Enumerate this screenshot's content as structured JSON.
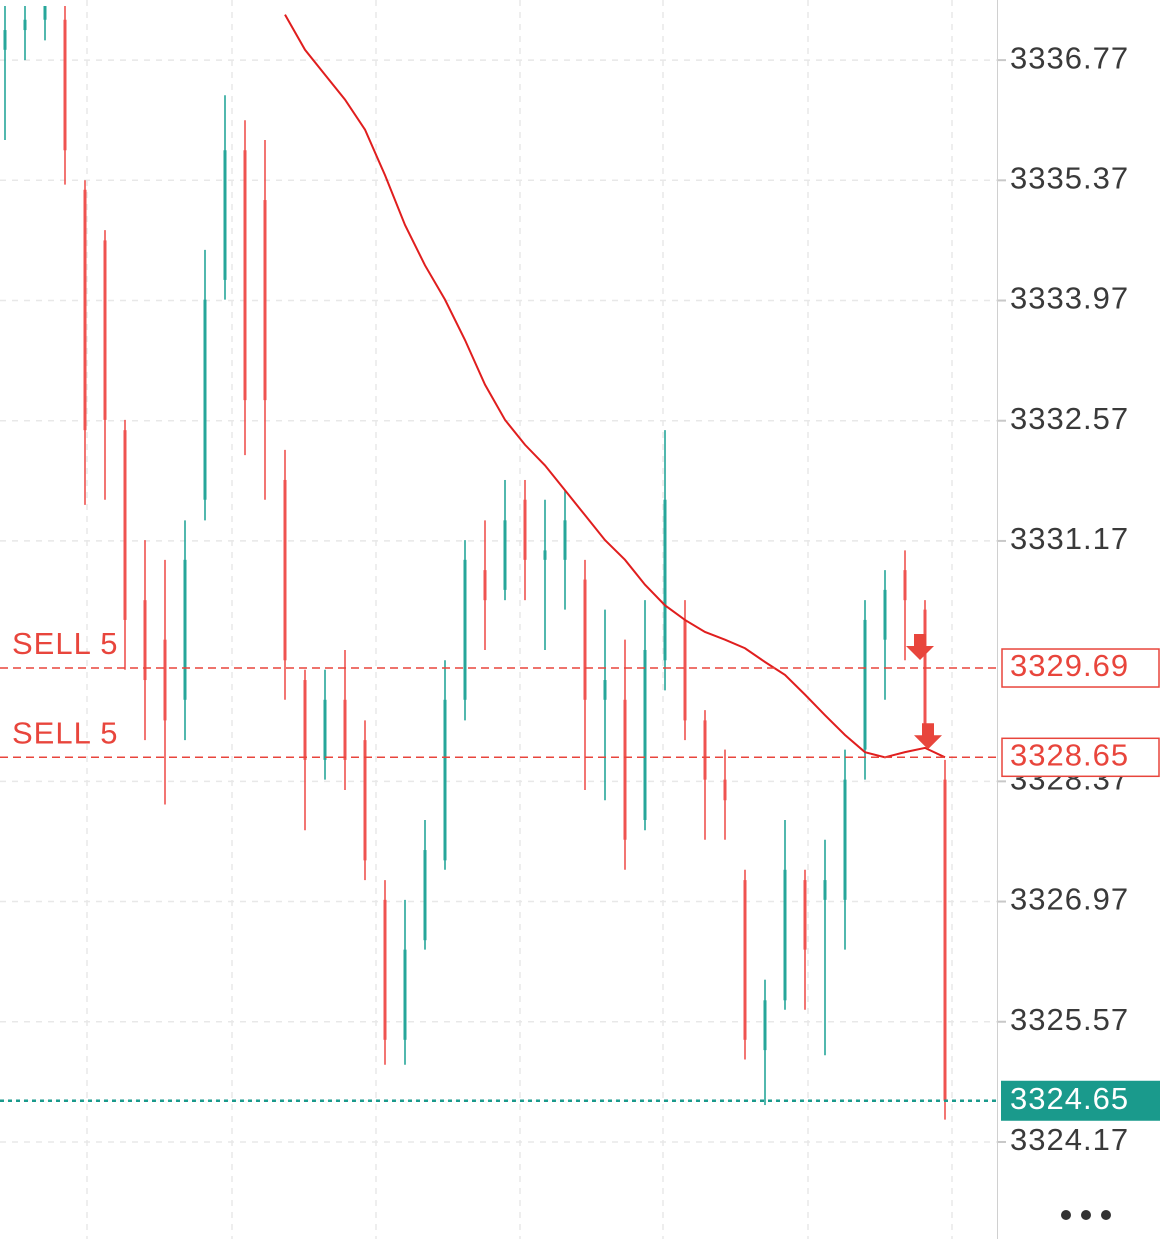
{
  "chart_data": {
    "type": "ohlc",
    "up_color": "#26a69a",
    "down_color": "#ef5350",
    "open": [
      3336.89,
      3337.12,
      3337.24,
      3337.24,
      3335.26,
      3334.67,
      3332.46,
      3330.48,
      3330.02,
      3329.32,
      3331.65,
      3334.21,
      3335.72,
      3335.14,
      3331.88,
      3329.55,
      3328.62,
      3329.32,
      3328.85,
      3326.99,
      3325.36,
      3326.52,
      3327.45,
      3329.32,
      3330.83,
      3330.6,
      3331.65,
      3330.95,
      3330.95,
      3330.72,
      3329.32,
      3329.32,
      3327.92,
      3329.78,
      3330.25,
      3329.08,
      3328.39,
      3327.22,
      3325.24,
      3325.82,
      3327.22,
      3326.99,
      3326.99,
      3328.74,
      3330.02,
      3330.83,
      3330.37,
      3328.39
    ],
    "high": [
      3337.4,
      3337.4,
      3337.4,
      3337.4,
      3335.37,
      3334.79,
      3332.58,
      3331.18,
      3330.95,
      3331.41,
      3334.56,
      3336.36,
      3336.07,
      3335.84,
      3332.23,
      3329.67,
      3329.67,
      3329.9,
      3329.08,
      3327.22,
      3326.99,
      3327.92,
      3329.78,
      3331.18,
      3331.41,
      3331.88,
      3331.88,
      3331.65,
      3331.76,
      3330.95,
      3330.37,
      3330.02,
      3330.48,
      3332.46,
      3330.48,
      3329.2,
      3328.74,
      3327.34,
      3326.06,
      3327.92,
      3327.34,
      3327.69,
      3328.74,
      3330.48,
      3330.83,
      3331.06,
      3330.48,
      3328.62
    ],
    "low": [
      3335.84,
      3336.77,
      3337.0,
      3335.32,
      3331.59,
      3331.65,
      3329.67,
      3328.85,
      3328.1,
      3328.85,
      3331.41,
      3333.98,
      3332.17,
      3331.65,
      3329.32,
      3327.8,
      3328.39,
      3328.27,
      3327.22,
      3325.07,
      3325.07,
      3326.41,
      3327.34,
      3329.08,
      3329.9,
      3330.48,
      3330.48,
      3329.9,
      3330.37,
      3328.27,
      3328.15,
      3327.34,
      3327.8,
      3329.43,
      3328.85,
      3327.69,
      3327.69,
      3325.13,
      3324.6,
      3325.71,
      3325.71,
      3325.18,
      3326.41,
      3328.39,
      3329.32,
      3329.78,
      3328.85,
      3324.43
    ],
    "close": [
      3337.12,
      3337.24,
      3337.4,
      3335.72,
      3332.46,
      3332.58,
      3330.25,
      3329.55,
      3329.08,
      3330.95,
      3333.98,
      3335.72,
      3332.81,
      3332.81,
      3329.78,
      3328.62,
      3329.32,
      3328.62,
      3327.45,
      3325.36,
      3326.41,
      3327.57,
      3329.32,
      3330.95,
      3330.48,
      3331.41,
      3330.95,
      3331.06,
      3331.41,
      3329.32,
      3329.55,
      3327.69,
      3329.9,
      3331.65,
      3329.08,
      3328.39,
      3328.15,
      3325.36,
      3325.82,
      3327.34,
      3326.41,
      3327.22,
      3328.39,
      3330.25,
      3330.6,
      3330.48,
      3328.85,
      3324.65
    ],
    "ma": {
      "color": "#e01e1e",
      "values": [
        null,
        null,
        null,
        null,
        null,
        null,
        null,
        null,
        null,
        null,
        null,
        null,
        null,
        null,
        3337.3,
        3336.89,
        3336.6,
        3336.31,
        3335.96,
        3335.43,
        3334.85,
        3334.38,
        3333.98,
        3333.51,
        3332.99,
        3332.58,
        3332.29,
        3332.05,
        3331.76,
        3331.47,
        3331.18,
        3330.95,
        3330.66,
        3330.42,
        3330.25,
        3330.11,
        3330.02,
        3329.92,
        3329.76,
        3329.61,
        3329.38,
        3329.14,
        3328.91,
        3328.71,
        3328.65,
        3328.71,
        3328.76,
        3328.65
      ]
    },
    "ylim": [
      3323.04,
      3337.47
    ],
    "yticks": [
      3336.77,
      3335.37,
      3333.97,
      3332.57,
      3331.17,
      3328.37,
      3326.97,
      3325.57,
      3324.17
    ],
    "grid": true,
    "orders": [
      {
        "label": "SELL 5",
        "price": 3329.69,
        "color": "#e8453c"
      },
      {
        "label": "SELL 5",
        "price": 3328.65,
        "color": "#e8453c"
      }
    ],
    "last_price": {
      "value": 3324.65,
      "color": "#1a9a8c"
    }
  }
}
